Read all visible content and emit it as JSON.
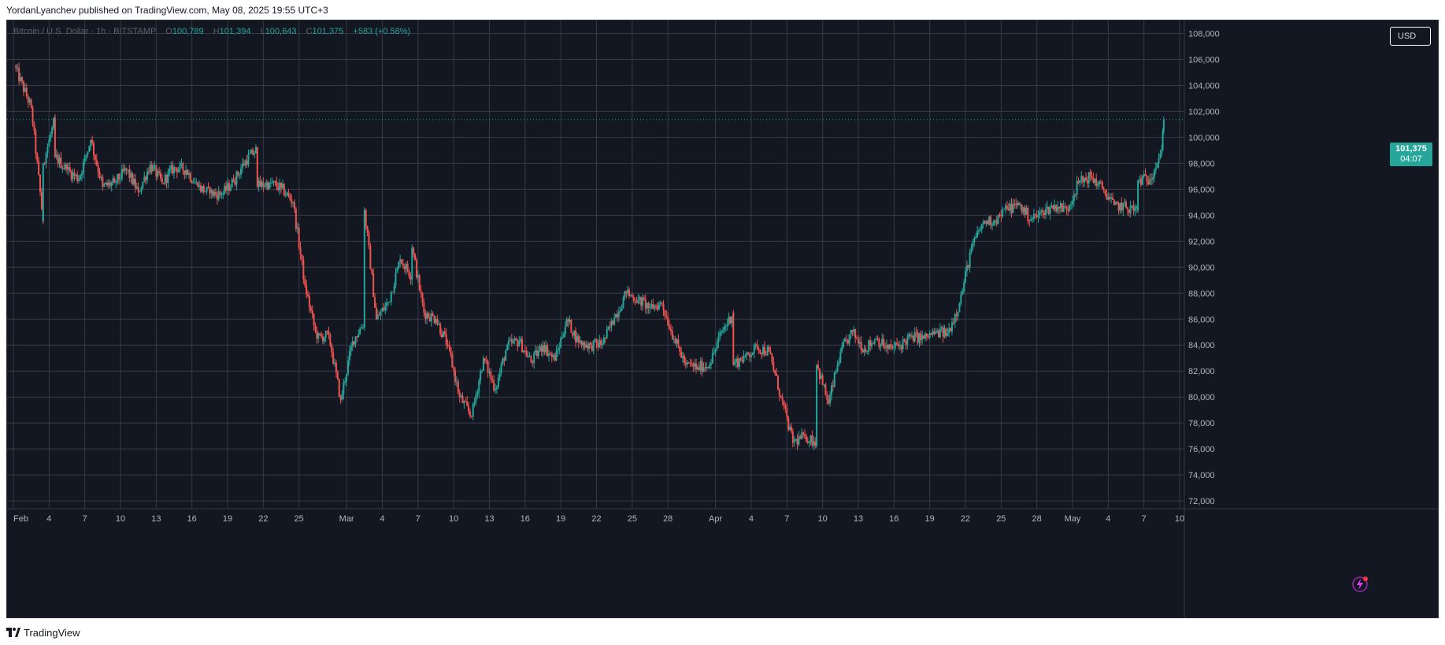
{
  "header": {
    "publisher_line": "YordanLyanchev published on TradingView.com, May 08, 2025 19:55 UTC+3"
  },
  "legend": {
    "symbol": "Bitcoin / U.S. Dollar · 1h · BITSTAMP",
    "o_label": "O",
    "o_value": "100,789",
    "h_label": "H",
    "h_value": "101,394",
    "l_label": "L",
    "l_value": "100,643",
    "c_label": "C",
    "c_value": "101,375",
    "change": "+583 (+0.58%)"
  },
  "currency_badge": "USD",
  "last_price": {
    "price": "101,375",
    "countdown": "04:07"
  },
  "footer": {
    "brand": "TradingView"
  },
  "colors": {
    "background": "#131722",
    "grid": "#363a45",
    "up": "#26a69a",
    "down": "#ef5350",
    "axis_text": "#b2b5be"
  },
  "icons": {
    "footer_logo": "tradingview-logo-icon",
    "bottom_right": "lightning-bolt-icon"
  },
  "chart_data": {
    "type": "candlestick",
    "title": "Bitcoin / U.S. Dollar · 1h · BITSTAMP",
    "xlabel": "",
    "ylabel": "",
    "ylim": [
      71400,
      109000
    ],
    "y_ticks": [
      72000,
      74000,
      76000,
      78000,
      80000,
      82000,
      84000,
      86000,
      88000,
      90000,
      92000,
      94000,
      96000,
      98000,
      100000,
      102000,
      104000,
      106000,
      108000
    ],
    "y_tick_labels": [
      "72,000",
      "74,000",
      "76,000",
      "78,000",
      "80,000",
      "82,000",
      "84,000",
      "86,000",
      "88,000",
      "90,000",
      "92,000",
      "94,000",
      "96,000",
      "98,000",
      "100,000",
      "102,000",
      "104,000",
      "106,000",
      "108,000"
    ],
    "x_tick_labels": [
      "Feb",
      "4",
      "7",
      "10",
      "13",
      "16",
      "19",
      "22",
      "25",
      "Mar",
      "4",
      "7",
      "10",
      "13",
      "16",
      "19",
      "22",
      "25",
      "28",
      "Apr",
      "4",
      "7",
      "10",
      "13",
      "16",
      "19",
      "22",
      "25",
      "28",
      "May",
      "4",
      "7",
      "10"
    ],
    "x_range": [
      "2025-02-01",
      "2025-05-10"
    ],
    "grid": true,
    "legend": "top-left",
    "last_price": 101375,
    "price_path": [
      [
        "2025-02-01",
        105500
      ],
      [
        "2025-02-02",
        102300
      ],
      [
        "2025-02-03",
        93500
      ],
      [
        "2025-02-03",
        98000
      ],
      [
        "2025-02-04",
        101500
      ],
      [
        "2025-02-04",
        98500
      ],
      [
        "2025-02-05",
        97500
      ],
      [
        "2025-02-06",
        96800
      ],
      [
        "2025-02-07",
        99800
      ],
      [
        "2025-02-08",
        96200
      ],
      [
        "2025-02-09",
        96500
      ],
      [
        "2025-02-10",
        97500
      ],
      [
        "2025-02-11",
        95800
      ],
      [
        "2025-02-12",
        97900
      ],
      [
        "2025-02-13",
        96500
      ],
      [
        "2025-02-14",
        97700
      ],
      [
        "2025-02-15",
        97500
      ],
      [
        "2025-02-16",
        96200
      ],
      [
        "2025-02-17",
        95700
      ],
      [
        "2025-02-18",
        95600
      ],
      [
        "2025-02-19",
        96600
      ],
      [
        "2025-02-20",
        98200
      ],
      [
        "2025-02-21",
        99100
      ],
      [
        "2025-02-21",
        96200
      ],
      [
        "2025-02-22",
        96500
      ],
      [
        "2025-02-23",
        96100
      ],
      [
        "2025-02-24",
        95000
      ],
      [
        "2025-02-25",
        88600
      ],
      [
        "2025-02-26",
        84500
      ],
      [
        "2025-02-27",
        84800
      ],
      [
        "2025-02-28",
        79800
      ],
      [
        "2025-03-01",
        84300
      ],
      [
        "2025-03-02",
        85800
      ],
      [
        "2025-03-02",
        94400
      ],
      [
        "2025-03-03",
        86000
      ],
      [
        "2025-03-04",
        87300
      ],
      [
        "2025-03-05",
        90600
      ],
      [
        "2025-03-06",
        89300
      ],
      [
        "2025-03-06",
        91500
      ],
      [
        "2025-03-07",
        86500
      ],
      [
        "2025-03-08",
        86000
      ],
      [
        "2025-03-09",
        84000
      ],
      [
        "2025-03-10",
        80000
      ],
      [
        "2025-03-11",
        78500
      ],
      [
        "2025-03-12",
        83000
      ],
      [
        "2025-03-13",
        80600
      ],
      [
        "2025-03-14",
        84000
      ],
      [
        "2025-03-15",
        84300
      ],
      [
        "2025-03-16",
        82700
      ],
      [
        "2025-03-17",
        84000
      ],
      [
        "2025-03-18",
        82800
      ],
      [
        "2025-03-19",
        86000
      ],
      [
        "2025-03-20",
        84200
      ],
      [
        "2025-03-21",
        84000
      ],
      [
        "2025-03-22",
        84100
      ],
      [
        "2025-03-23",
        86100
      ],
      [
        "2025-03-24",
        88000
      ],
      [
        "2025-03-25",
        87500
      ],
      [
        "2025-03-26",
        86900
      ],
      [
        "2025-03-27",
        87200
      ],
      [
        "2025-03-28",
        84500
      ],
      [
        "2025-03-29",
        82500
      ],
      [
        "2025-03-30",
        82300
      ],
      [
        "2025-03-31",
        82500
      ],
      [
        "2025-04-01",
        85000
      ],
      [
        "2025-04-02",
        86500
      ],
      [
        "2025-04-02",
        82500
      ],
      [
        "2025-04-03",
        83200
      ],
      [
        "2025-04-04",
        83800
      ],
      [
        "2025-04-05",
        83500
      ],
      [
        "2025-04-06",
        80000
      ],
      [
        "2025-04-07",
        76500
      ],
      [
        "2025-04-08",
        77000
      ],
      [
        "2025-04-09",
        76500
      ],
      [
        "2025-04-09",
        82500
      ],
      [
        "2025-04-10",
        79500
      ],
      [
        "2025-04-11",
        83500
      ],
      [
        "2025-04-12",
        85000
      ],
      [
        "2025-04-13",
        83700
      ],
      [
        "2025-04-14",
        84500
      ],
      [
        "2025-04-15",
        83700
      ],
      [
        "2025-04-16",
        84000
      ],
      [
        "2025-04-17",
        84700
      ],
      [
        "2025-04-18",
        84500
      ],
      [
        "2025-04-19",
        85000
      ],
      [
        "2025-04-20",
        84900
      ],
      [
        "2025-04-21",
        87200
      ],
      [
        "2025-04-22",
        91500
      ],
      [
        "2025-04-23",
        93500
      ],
      [
        "2025-04-24",
        93600
      ],
      [
        "2025-04-25",
        94500
      ],
      [
        "2025-04-26",
        94800
      ],
      [
        "2025-04-27",
        93700
      ],
      [
        "2025-04-28",
        94200
      ],
      [
        "2025-04-29",
        94800
      ],
      [
        "2025-04-30",
        94400
      ],
      [
        "2025-05-01",
        96500
      ],
      [
        "2025-05-02",
        97000
      ],
      [
        "2025-05-03",
        96100
      ],
      [
        "2025-05-04",
        94800
      ],
      [
        "2025-05-05",
        94600
      ],
      [
        "2025-05-06",
        94400
      ],
      [
        "2025-05-06",
        96700
      ],
      [
        "2025-05-07",
        96800
      ],
      [
        "2025-05-08",
        99000
      ],
      [
        "2025-05-08",
        101375
      ]
    ]
  }
}
